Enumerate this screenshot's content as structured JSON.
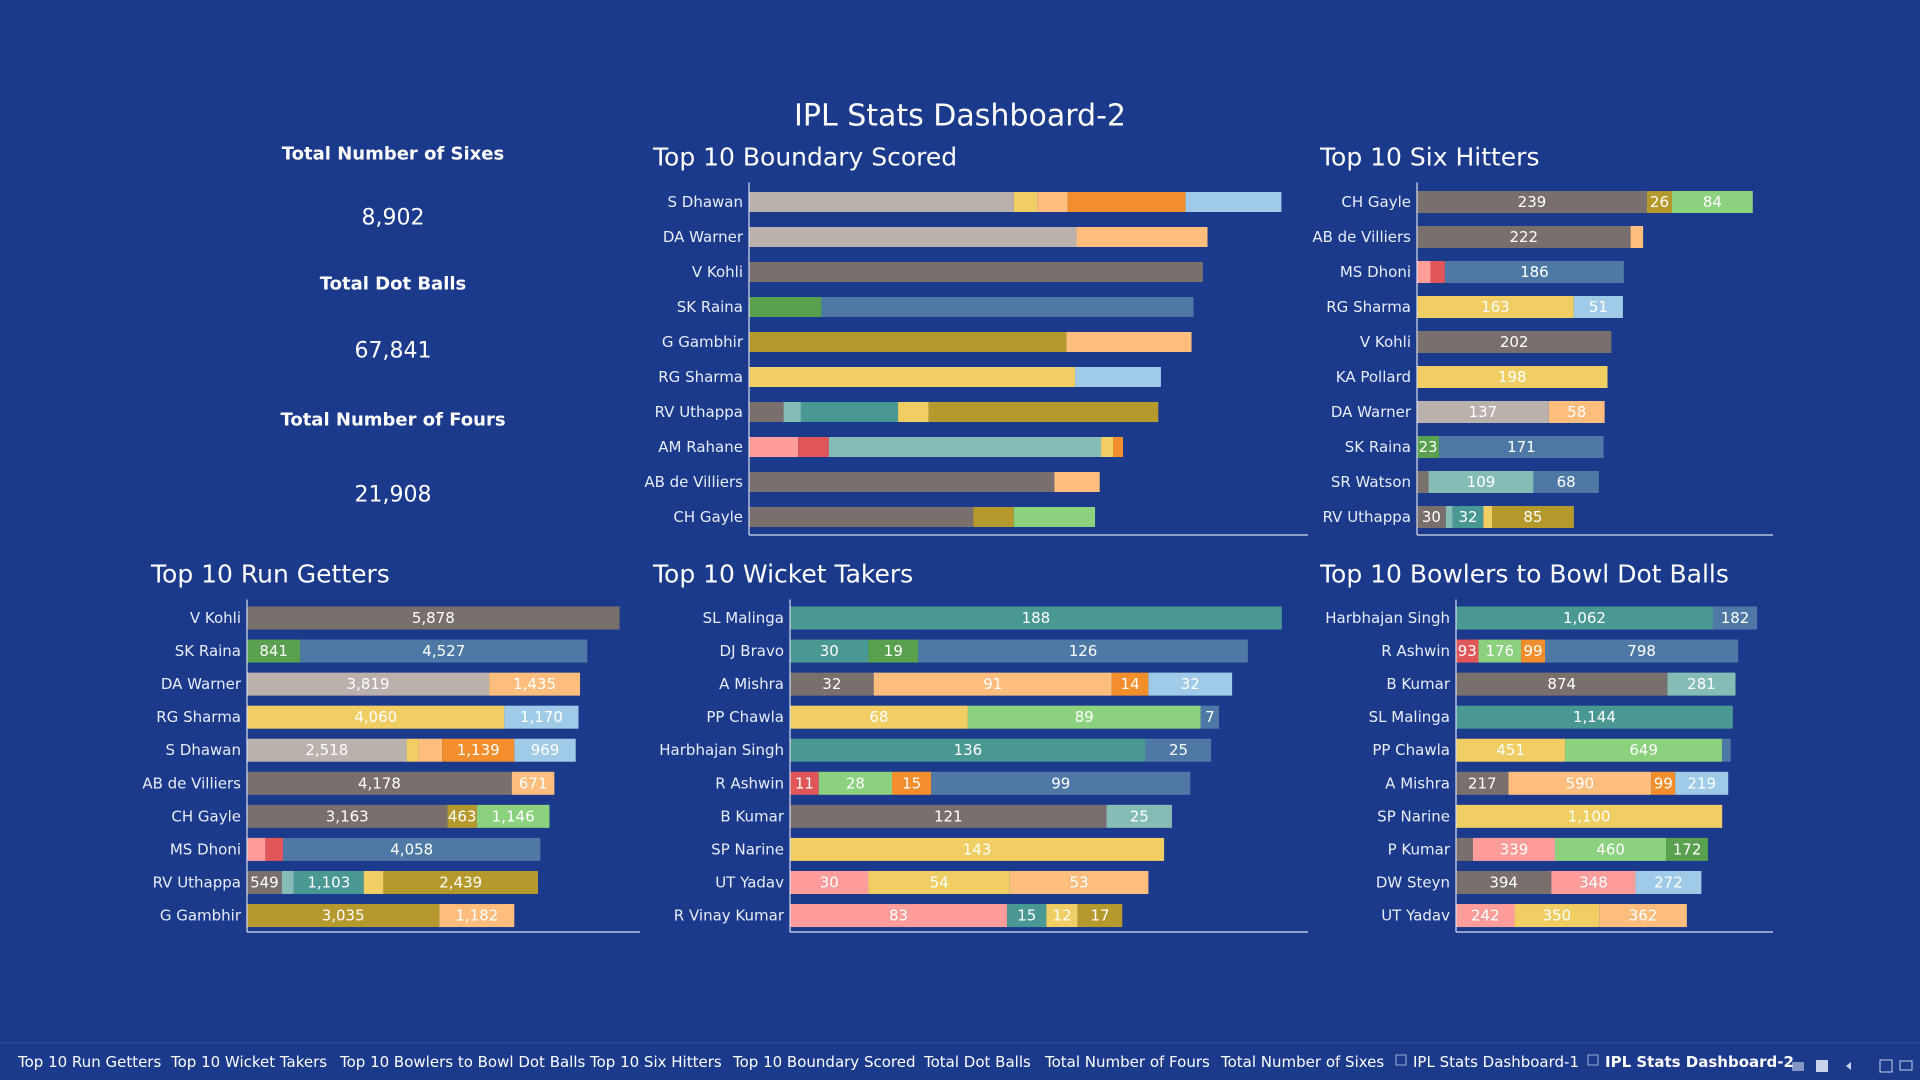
{
  "title": "IPL Stats Dashboard-2",
  "kpis": [
    {
      "label": "Total Number of Sixes",
      "value": "8,902"
    },
    {
      "label": "Total Dot Balls",
      "value": "67,841"
    },
    {
      "label": "Total Number of Fours",
      "value": "21,908"
    }
  ],
  "chart_data": [
    {
      "type": "stacked_bar",
      "title": "Top 10 Boundary Scored",
      "xlim": [
        0,
        840
      ],
      "categories": [
        "S Dhawan",
        "DA Warner",
        "V Kohli",
        "SK Raina",
        "G Gambhir",
        "RG Sharma",
        "RV Uthappa",
        "AM Rahane",
        "AB de Villiers",
        "CH Gayle"
      ],
      "segments": [
        [
          {
            "value": 398,
            "color": "#bab0ac"
          },
          {
            "value": 35,
            "color": "#f1ce63"
          },
          {
            "value": 46,
            "color": "#ffbe7d"
          },
          {
            "value": 177,
            "color": "#f28e2b"
          },
          {
            "value": 144,
            "color": "#a0cbe8"
          }
        ],
        [
          {
            "value": 492,
            "color": "#bab0ac"
          },
          {
            "value": 197,
            "color": "#ffbe7d"
          }
        ],
        [
          {
            "value": 682,
            "color": "#79706e"
          }
        ],
        [
          {
            "value": 109,
            "color": "#59a14f"
          },
          {
            "value": 559,
            "color": "#4e79a7"
          }
        ],
        [
          {
            "value": 477,
            "color": "#b6992d"
          },
          {
            "value": 188,
            "color": "#ffbe7d"
          }
        ],
        [
          {
            "value": 490,
            "color": "#f1ce63"
          },
          {
            "value": 129,
            "color": "#a0cbe8"
          }
        ],
        [
          {
            "value": 52,
            "color": "#79706e"
          },
          {
            "value": 26,
            "color": "#86bcb6"
          },
          {
            "value": 146,
            "color": "#499894"
          },
          {
            "value": 46,
            "color": "#f1ce63"
          },
          {
            "value": 345,
            "color": "#b6992d"
          }
        ],
        [
          {
            "value": 74,
            "color": "#ff9d9a"
          },
          {
            "value": 46,
            "color": "#e15759"
          },
          {
            "value": 409,
            "color": "#86bcb6"
          },
          {
            "value": 18,
            "color": "#f1ce63"
          },
          {
            "value": 15,
            "color": "#f28e2b"
          }
        ],
        [
          {
            "value": 459,
            "color": "#79706e"
          },
          {
            "value": 68,
            "color": "#ffbe7d"
          }
        ],
        [
          {
            "value": 337,
            "color": "#79706e"
          },
          {
            "value": 61,
            "color": "#b6992d"
          },
          {
            "value": 122,
            "color": "#8cd17d"
          }
        ]
      ]
    },
    {
      "type": "stacked_bar",
      "title": "Top 10 Six Hitters",
      "xlim": [
        0,
        370
      ],
      "categories": [
        "CH Gayle",
        "AB de Villiers",
        "MS Dhoni",
        "RG Sharma",
        "V Kohli",
        "KA Pollard",
        "DA Warner",
        "SK Raina",
        "SR Watson",
        "RV Uthappa"
      ],
      "segments": [
        [
          {
            "value": 239,
            "color": "#79706e",
            "label": "239"
          },
          {
            "value": 26,
            "color": "#b6992d",
            "label": "26"
          },
          {
            "value": 84,
            "color": "#8cd17d",
            "label": "84"
          }
        ],
        [
          {
            "value": 222,
            "color": "#79706e",
            "label": "222"
          },
          {
            "value": 13,
            "color": "#ffbe7d"
          }
        ],
        [
          {
            "value": 14,
            "color": "#ff9d9a"
          },
          {
            "value": 15,
            "color": "#e15759"
          },
          {
            "value": 186,
            "color": "#4e79a7",
            "label": "186"
          }
        ],
        [
          {
            "value": 163,
            "color": "#f1ce63",
            "label": "163"
          },
          {
            "value": 51,
            "color": "#a0cbe8",
            "label": "51"
          }
        ],
        [
          {
            "value": 202,
            "color": "#79706e",
            "label": "202"
          }
        ],
        [
          {
            "value": 198,
            "color": "#f1ce63",
            "label": "198"
          }
        ],
        [
          {
            "value": 137,
            "color": "#bab0ac",
            "label": "137"
          },
          {
            "value": 58,
            "color": "#ffbe7d",
            "label": "58"
          }
        ],
        [
          {
            "value": 23,
            "color": "#59a14f",
            "label": "23"
          },
          {
            "value": 171,
            "color": "#4e79a7",
            "label": "171"
          }
        ],
        [
          {
            "value": 12,
            "color": "#79706e"
          },
          {
            "value": 109,
            "color": "#86bcb6",
            "label": "109"
          },
          {
            "value": 68,
            "color": "#4e79a7",
            "label": "68"
          }
        ],
        [
          {
            "value": 30,
            "color": "#79706e",
            "label": "30"
          },
          {
            "value": 7,
            "color": "#86bcb6"
          },
          {
            "value": 32,
            "color": "#499894",
            "label": "32"
          },
          {
            "value": 9,
            "color": "#f1ce63"
          },
          {
            "value": 85,
            "color": "#b6992d",
            "label": "85"
          }
        ]
      ]
    },
    {
      "type": "stacked_bar",
      "title": "Top 10 Run Getters",
      "xlim": [
        0,
        6200
      ],
      "categories": [
        "V Kohli",
        "SK Raina",
        "DA Warner",
        "RG Sharma",
        "S Dhawan",
        "AB de Villiers",
        "CH Gayle",
        "MS Dhoni",
        "RV Uthappa",
        "G Gambhir"
      ],
      "segments": [
        [
          {
            "value": 5878,
            "color": "#79706e",
            "label": "5,878"
          }
        ],
        [
          {
            "value": 841,
            "color": "#59a14f",
            "label": "841"
          },
          {
            "value": 4527,
            "color": "#4e79a7",
            "label": "4,527"
          }
        ],
        [
          {
            "value": 3819,
            "color": "#bab0ac",
            "label": "3,819"
          },
          {
            "value": 1435,
            "color": "#ffbe7d",
            "label": "1,435"
          }
        ],
        [
          {
            "value": 4060,
            "color": "#f1ce63",
            "label": "4,060"
          },
          {
            "value": 1170,
            "color": "#a0cbe8",
            "label": "1,170"
          }
        ],
        [
          {
            "value": 2518,
            "color": "#bab0ac",
            "label": "2,518"
          },
          {
            "value": 190,
            "color": "#f1ce63"
          },
          {
            "value": 370,
            "color": "#ffbe7d"
          },
          {
            "value": 1139,
            "color": "#f28e2b",
            "label": "1,139"
          },
          {
            "value": 969,
            "color": "#a0cbe8",
            "label": "969"
          }
        ],
        [
          {
            "value": 4178,
            "color": "#79706e",
            "label": "4,178"
          },
          {
            "value": 671,
            "color": "#ffbe7d",
            "label": "671"
          }
        ],
        [
          {
            "value": 3163,
            "color": "#79706e",
            "label": "3,163"
          },
          {
            "value": 463,
            "color": "#b6992d",
            "label": "463"
          },
          {
            "value": 1146,
            "color": "#8cd17d",
            "label": "1,146"
          }
        ],
        [
          {
            "value": 290,
            "color": "#ff9d9a"
          },
          {
            "value": 280,
            "color": "#e15759"
          },
          {
            "value": 4058,
            "color": "#4e79a7",
            "label": "4,058"
          }
        ],
        [
          {
            "value": 549,
            "color": "#79706e",
            "label": "549"
          },
          {
            "value": 190,
            "color": "#86bcb6"
          },
          {
            "value": 1103,
            "color": "#499894",
            "label": "1,103"
          },
          {
            "value": 310,
            "color": "#f1ce63"
          },
          {
            "value": 2439,
            "color": "#b6992d",
            "label": "2,439"
          }
        ],
        [
          {
            "value": 3035,
            "color": "#b6992d",
            "label": "3,035"
          },
          {
            "value": 1182,
            "color": "#ffbe7d",
            "label": "1,182"
          }
        ]
      ]
    },
    {
      "type": "stacked_bar",
      "title": "Top 10 Wicket Takers",
      "xlim": [
        0,
        198
      ],
      "categories": [
        "SL Malinga",
        "DJ Bravo",
        "A Mishra",
        "PP Chawla",
        "Harbhajan Singh",
        "R Ashwin",
        "B Kumar",
        "SP Narine",
        "UT Yadav",
        "R Vinay Kumar"
      ],
      "segments": [
        [
          {
            "value": 188,
            "color": "#499894",
            "label": "188"
          }
        ],
        [
          {
            "value": 30,
            "color": "#499894",
            "label": "30"
          },
          {
            "value": 19,
            "color": "#59a14f",
            "label": "19"
          },
          {
            "value": 126,
            "color": "#4e79a7",
            "label": "126"
          }
        ],
        [
          {
            "value": 32,
            "color": "#79706e",
            "label": "32"
          },
          {
            "value": 91,
            "color": "#ffbe7d",
            "label": "91"
          },
          {
            "value": 14,
            "color": "#f28e2b",
            "label": "14"
          },
          {
            "value": 32,
            "color": "#a0cbe8",
            "label": "32"
          }
        ],
        [
          {
            "value": 68,
            "color": "#f1ce63",
            "label": "68"
          },
          {
            "value": 89,
            "color": "#8cd17d",
            "label": "89"
          },
          {
            "value": 7,
            "color": "#4e79a7",
            "label": "7"
          }
        ],
        [
          {
            "value": 136,
            "color": "#499894",
            "label": "136"
          },
          {
            "value": 25,
            "color": "#4e79a7",
            "label": "25"
          }
        ],
        [
          {
            "value": 11,
            "color": "#e15759",
            "label": "11"
          },
          {
            "value": 28,
            "color": "#8cd17d",
            "label": "28"
          },
          {
            "value": 15,
            "color": "#f28e2b",
            "label": "15"
          },
          {
            "value": 99,
            "color": "#4e79a7",
            "label": "99"
          }
        ],
        [
          {
            "value": 121,
            "color": "#79706e",
            "label": "121"
          },
          {
            "value": 25,
            "color": "#86bcb6",
            "label": "25"
          }
        ],
        [
          {
            "value": 143,
            "color": "#f1ce63",
            "label": "143"
          }
        ],
        [
          {
            "value": 30,
            "color": "#ff9d9a",
            "label": "30"
          },
          {
            "value": 54,
            "color": "#f1ce63",
            "label": "54"
          },
          {
            "value": 53,
            "color": "#ffbe7d",
            "label": "53"
          }
        ],
        [
          {
            "value": 83,
            "color": "#ff9d9a",
            "label": "83"
          },
          {
            "value": 15,
            "color": "#499894",
            "label": "15"
          },
          {
            "value": 12,
            "color": "#f1ce63",
            "label": "12"
          },
          {
            "value": 17,
            "color": "#b6992d",
            "label": "17"
          }
        ]
      ]
    },
    {
      "type": "stacked_bar",
      "title": "Top 10 Bowlers to Bowl Dot Balls",
      "xlim": [
        0,
        1310
      ],
      "categories": [
        "Harbhajan Singh",
        "R Ashwin",
        "B Kumar",
        "SL Malinga",
        "PP Chawla",
        "A Mishra",
        "SP Narine",
        "P Kumar",
        "DW Steyn",
        "UT Yadav"
      ],
      "segments": [
        [
          {
            "value": 1062,
            "color": "#499894",
            "label": "1,062"
          },
          {
            "value": 182,
            "color": "#4e79a7",
            "label": "182"
          }
        ],
        [
          {
            "value": 93,
            "color": "#e15759",
            "label": "93"
          },
          {
            "value": 176,
            "color": "#8cd17d",
            "label": "176"
          },
          {
            "value": 99,
            "color": "#f28e2b",
            "label": "99"
          },
          {
            "value": 798,
            "color": "#4e79a7",
            "label": "798"
          }
        ],
        [
          {
            "value": 874,
            "color": "#79706e",
            "label": "874"
          },
          {
            "value": 281,
            "color": "#86bcb6",
            "label": "281"
          }
        ],
        [
          {
            "value": 1144,
            "color": "#499894",
            "label": "1,144"
          }
        ],
        [
          {
            "value": 451,
            "color": "#f1ce63",
            "label": "451"
          },
          {
            "value": 649,
            "color": "#8cd17d",
            "label": "649"
          },
          {
            "value": 35,
            "color": "#4e79a7"
          }
        ],
        [
          {
            "value": 217,
            "color": "#79706e",
            "label": "217"
          },
          {
            "value": 590,
            "color": "#ffbe7d",
            "label": "590"
          },
          {
            "value": 99,
            "color": "#f28e2b",
            "label": "99"
          },
          {
            "value": 219,
            "color": "#a0cbe8",
            "label": "219"
          }
        ],
        [
          {
            "value": 1100,
            "color": "#f1ce63",
            "label": "1,100"
          }
        ],
        [
          {
            "value": 70,
            "color": "#79706e"
          },
          {
            "value": 339,
            "color": "#ff9d9a",
            "label": "339"
          },
          {
            "value": 460,
            "color": "#8cd17d",
            "label": "460"
          },
          {
            "value": 172,
            "color": "#59a14f",
            "label": "172"
          }
        ],
        [
          {
            "value": 394,
            "color": "#79706e",
            "label": "394"
          },
          {
            "value": 348,
            "color": "#ff9d9a",
            "label": "348"
          },
          {
            "value": 272,
            "color": "#a0cbe8",
            "label": "272"
          }
        ],
        [
          {
            "value": 242,
            "color": "#ff9d9a",
            "label": "242"
          },
          {
            "value": 350,
            "color": "#f1ce63",
            "label": "350"
          },
          {
            "value": 362,
            "color": "#ffbe7d",
            "label": "362"
          }
        ]
      ]
    }
  ],
  "tabs": [
    "Top 10 Run Getters",
    "Top 10 Wicket Takers",
    "Top 10 Bowlers to Bowl Dot Balls",
    "Top 10 Six Hitters",
    "Top 10 Boundary Scored",
    "Total Dot Balls",
    "Total Number of Fours",
    "Total Number of Sixes",
    "IPL Stats Dashboard-1",
    "IPL Stats Dashboard-2"
  ],
  "active_tab": 9
}
